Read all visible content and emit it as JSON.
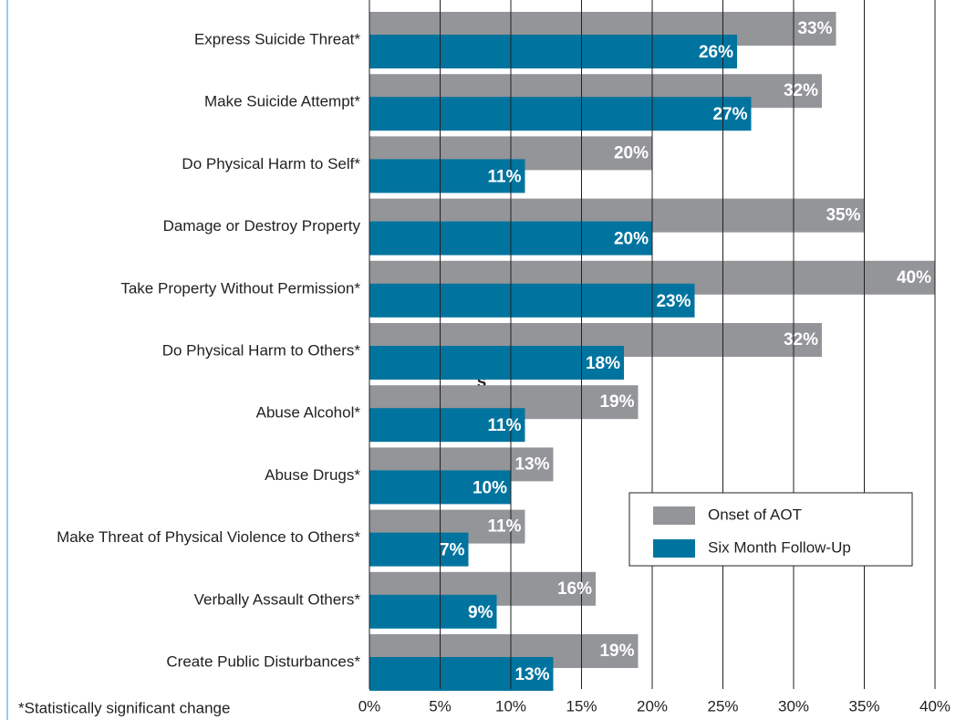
{
  "chart_data": {
    "type": "hbar",
    "categories": [
      "Express Suicide Threat*",
      "Make Suicide Attempt*",
      "Do Physical Harm to Self*",
      "Damage or Destroy Property",
      "Take Property Without Permission*",
      "Do Physical Harm to Others*",
      "Abuse Alcohol*",
      "Abuse Drugs*",
      "Make Threat of Physical Violence to Others*",
      "Verbally Assault Others*",
      "Create Public Disturbances*"
    ],
    "series": [
      {
        "name": "Onset of AOT",
        "color": "#939598",
        "values": [
          33,
          32,
          20,
          35,
          40,
          32,
          19,
          13,
          11,
          16,
          19
        ],
        "value_labels": [
          "33%",
          "32%",
          "20%",
          "35%",
          "40%",
          "32%",
          "19%",
          "13%",
          "11%",
          "16%",
          "19%"
        ]
      },
      {
        "name": "Six Month Follow-Up",
        "color": "#00749f",
        "values": [
          26,
          27,
          11,
          20,
          23,
          18,
          11,
          10,
          7,
          9,
          13
        ],
        "value_labels": [
          "26%",
          "27%",
          "11%",
          "20%",
          "23%",
          "18%",
          "11%",
          "10%",
          "7%",
          "9%",
          "13%"
        ]
      }
    ],
    "xlim": [
      0,
      40
    ],
    "xticks": [
      {
        "value": 0,
        "label": "0%"
      },
      {
        "value": 5,
        "label": "5%"
      },
      {
        "value": 10,
        "label": "10%"
      },
      {
        "value": 15,
        "label": "15%"
      },
      {
        "value": 20,
        "label": "20%"
      },
      {
        "value": 25,
        "label": "25%"
      },
      {
        "value": 30,
        "label": "30%"
      },
      {
        "value": 35,
        "label": "35%"
      },
      {
        "value": 40,
        "label": "40%"
      }
    ],
    "grid": true,
    "annotation": "s",
    "footnote": "*Statistically significant change"
  }
}
